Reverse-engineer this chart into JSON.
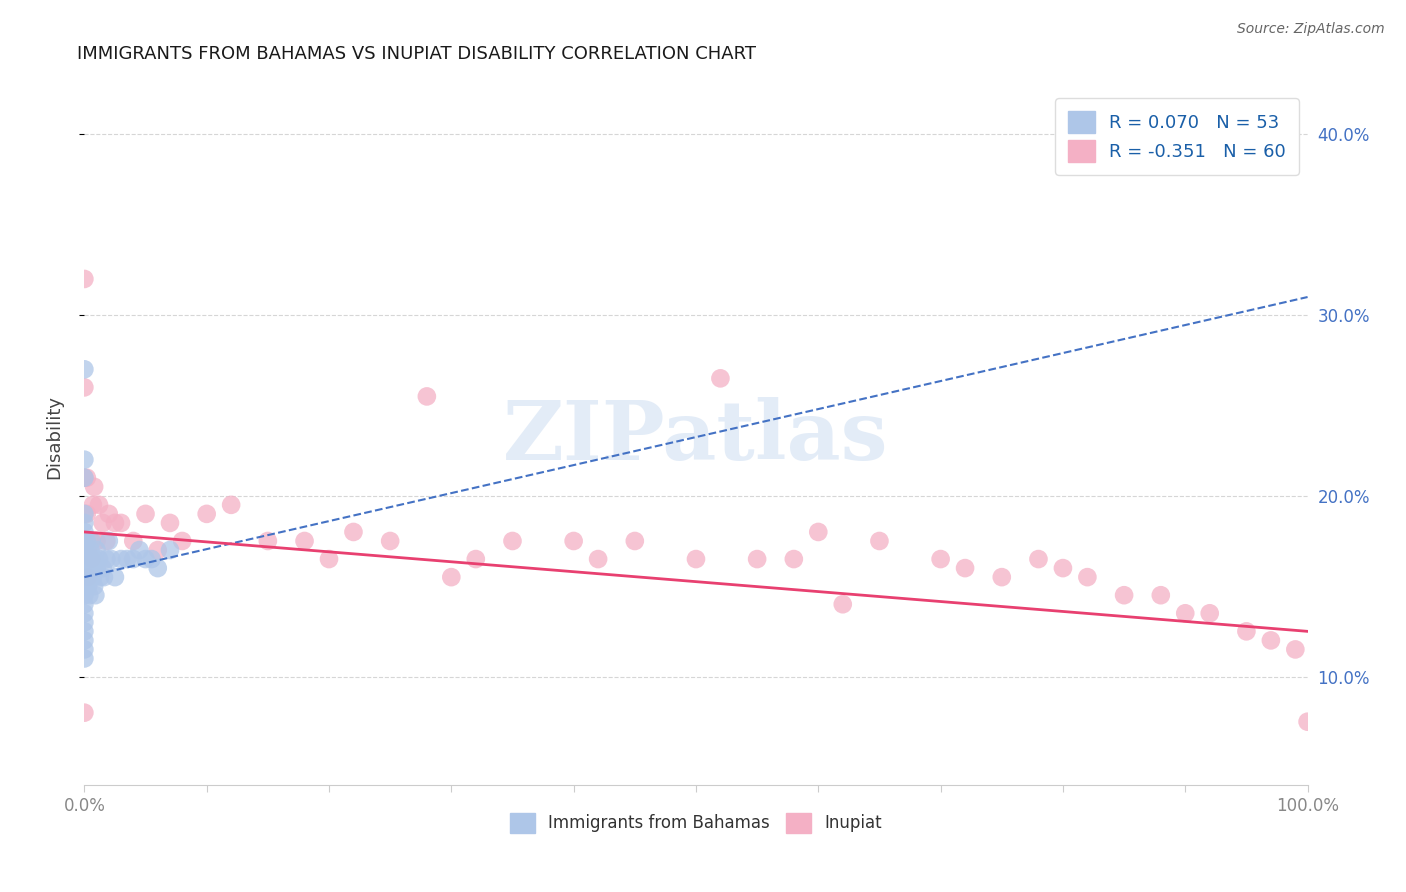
{
  "title": "IMMIGRANTS FROM BAHAMAS VS INUPIAT DISABILITY CORRELATION CHART",
  "source": "Source: ZipAtlas.com",
  "ylabel": "Disability",
  "xlim": [
    0.0,
    1.0
  ],
  "ylim": [
    0.04,
    0.425
  ],
  "yticks": [
    0.1,
    0.2,
    0.3,
    0.4
  ],
  "ytick_labels": [
    "10.0%",
    "20.0%",
    "30.0%",
    "40.0%"
  ],
  "xticks": [
    0.0,
    0.1,
    0.2,
    0.3,
    0.4,
    0.5,
    0.6,
    0.7,
    0.8,
    0.9,
    1.0
  ],
  "xtick_labels_show": [
    "0.0%",
    "",
    "",
    "",
    "",
    "",
    "",
    "",
    "",
    "",
    "100.0%"
  ],
  "watermark_text": "ZIPatlas",
  "blue_scatter_x": [
    0.0,
    0.0,
    0.0,
    0.0,
    0.0,
    0.0,
    0.0,
    0.0,
    0.0,
    0.0,
    0.0,
    0.0,
    0.0,
    0.0,
    0.0,
    0.0,
    0.0,
    0.0,
    0.0,
    0.0,
    0.002,
    0.002,
    0.003,
    0.003,
    0.003,
    0.004,
    0.004,
    0.005,
    0.005,
    0.006,
    0.006,
    0.007,
    0.008,
    0.008,
    0.009,
    0.01,
    0.01,
    0.012,
    0.013,
    0.015,
    0.016,
    0.018,
    0.02,
    0.022,
    0.025,
    0.03,
    0.035,
    0.04,
    0.045,
    0.05,
    0.055,
    0.06,
    0.07
  ],
  "blue_scatter_y": [
    0.27,
    0.22,
    0.21,
    0.19,
    0.185,
    0.18,
    0.175,
    0.17,
    0.165,
    0.16,
    0.155,
    0.15,
    0.145,
    0.14,
    0.135,
    0.13,
    0.125,
    0.12,
    0.115,
    0.11,
    0.175,
    0.165,
    0.16,
    0.155,
    0.15,
    0.155,
    0.145,
    0.17,
    0.155,
    0.175,
    0.16,
    0.155,
    0.165,
    0.15,
    0.145,
    0.17,
    0.16,
    0.165,
    0.155,
    0.16,
    0.155,
    0.165,
    0.175,
    0.165,
    0.155,
    0.165,
    0.165,
    0.165,
    0.17,
    0.165,
    0.165,
    0.16,
    0.17
  ],
  "pink_scatter_x": [
    0.0,
    0.0,
    0.0,
    0.0,
    0.0,
    0.002,
    0.002,
    0.003,
    0.003,
    0.005,
    0.006,
    0.007,
    0.008,
    0.01,
    0.012,
    0.015,
    0.018,
    0.02,
    0.025,
    0.03,
    0.04,
    0.05,
    0.06,
    0.07,
    0.08,
    0.1,
    0.12,
    0.15,
    0.18,
    0.2,
    0.22,
    0.25,
    0.28,
    0.3,
    0.32,
    0.35,
    0.4,
    0.42,
    0.45,
    0.5,
    0.52,
    0.55,
    0.58,
    0.6,
    0.62,
    0.65,
    0.7,
    0.72,
    0.75,
    0.78,
    0.8,
    0.82,
    0.85,
    0.88,
    0.9,
    0.92,
    0.95,
    0.97,
    0.99,
    1.0
  ],
  "pink_scatter_y": [
    0.32,
    0.26,
    0.21,
    0.19,
    0.08,
    0.21,
    0.19,
    0.17,
    0.155,
    0.175,
    0.165,
    0.195,
    0.205,
    0.175,
    0.195,
    0.185,
    0.175,
    0.19,
    0.185,
    0.185,
    0.175,
    0.19,
    0.17,
    0.185,
    0.175,
    0.19,
    0.195,
    0.175,
    0.175,
    0.165,
    0.18,
    0.175,
    0.255,
    0.155,
    0.165,
    0.175,
    0.175,
    0.165,
    0.175,
    0.165,
    0.265,
    0.165,
    0.165,
    0.18,
    0.14,
    0.175,
    0.165,
    0.16,
    0.155,
    0.165,
    0.16,
    0.155,
    0.145,
    0.145,
    0.135,
    0.135,
    0.125,
    0.12,
    0.115,
    0.075
  ],
  "blue_line_x": [
    0.0,
    1.0
  ],
  "blue_line_y": [
    0.155,
    0.31
  ],
  "pink_line_x": [
    0.0,
    1.0
  ],
  "pink_line_y": [
    0.18,
    0.125
  ],
  "background_color": "#ffffff",
  "grid_color": "#cccccc",
  "blue_dot_color": "#aec6e8",
  "pink_dot_color": "#f4b0c5",
  "blue_line_color": "#4472c4",
  "pink_line_color": "#e84070",
  "title_color": "#1a1a1a",
  "axis_label_color": "#444444",
  "tick_color": "#888888",
  "source_color": "#666666",
  "right_tick_color": "#4472c4"
}
